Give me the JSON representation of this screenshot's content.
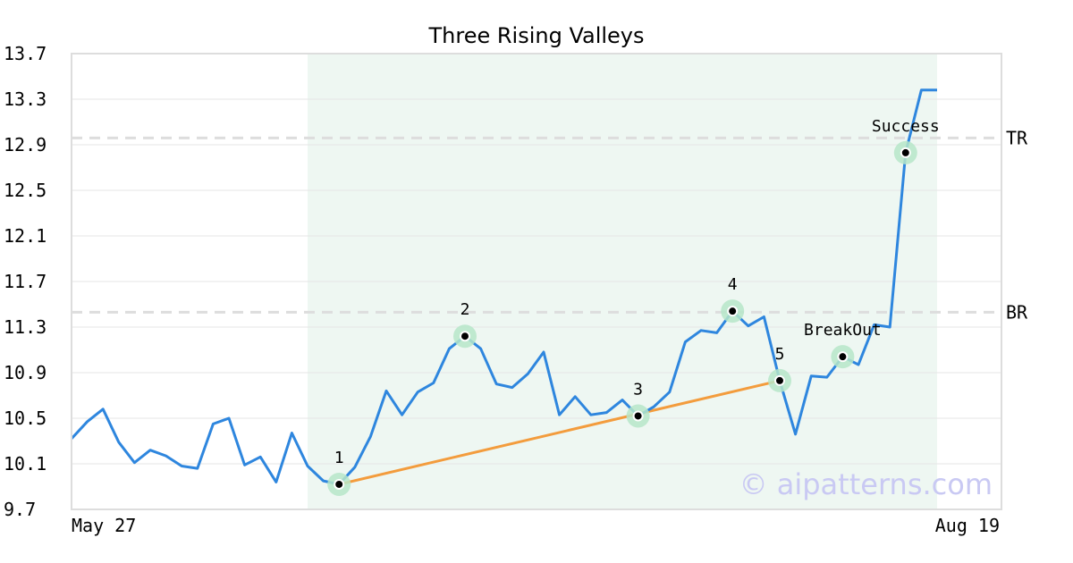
{
  "chart_data": {
    "type": "line",
    "title": "Three Rising Valleys",
    "xlabel": "",
    "ylabel": "",
    "x_tick_labels": [
      "May 27",
      "Aug 19"
    ],
    "y_ticks": [
      9.7,
      10.1,
      10.5,
      10.9,
      11.3,
      11.7,
      12.1,
      12.5,
      12.9,
      13.3,
      13.7
    ],
    "y_tick_labels": [
      "9.7",
      "10.1",
      "10.5",
      "10.9",
      "11.3",
      "11.7",
      "12.1",
      "12.5",
      "12.9",
      "13.3",
      "13.7"
    ],
    "ylim": [
      9.7,
      13.7
    ],
    "grid": "horizontal",
    "colors": {
      "price": "#2e86de",
      "trendline": "#f39c3d",
      "highlight_bg": "#eef7f2",
      "marker_halo": "#b6e6c9",
      "level_line": "#dddddd"
    },
    "series": [
      {
        "values": [
          10.32,
          10.47,
          10.58,
          10.29,
          10.11,
          10.22,
          10.17,
          10.08,
          10.06,
          10.45,
          10.5,
          10.09,
          10.16,
          9.94,
          10.37,
          10.08,
          9.95,
          9.92,
          10.07,
          10.34,
          10.74,
          10.53,
          10.73,
          10.81,
          11.11,
          11.22,
          11.11,
          10.8,
          10.77,
          10.89,
          11.08,
          10.53,
          10.69,
          10.53,
          10.55,
          10.66,
          10.52,
          10.6,
          10.73,
          11.17,
          11.27,
          11.25,
          11.44,
          11.31,
          11.39,
          10.83,
          10.36,
          10.87,
          10.86,
          11.04,
          10.97,
          11.32,
          11.3,
          12.83,
          13.38,
          13.38
        ]
      }
    ],
    "highlight_region": {
      "start_index": 15,
      "end_index": 55
    },
    "trendline": {
      "from_label": "1",
      "to_label": "5"
    },
    "levels": [
      {
        "label": "TR",
        "value": 12.96
      },
      {
        "label": "BR",
        "value": 11.43
      }
    ],
    "annotations": [
      {
        "label": "1",
        "index": 17,
        "value": 9.92
      },
      {
        "label": "2",
        "index": 25,
        "value": 11.22
      },
      {
        "label": "3",
        "index": 36,
        "value": 10.52
      },
      {
        "label": "4",
        "index": 42,
        "value": 11.44
      },
      {
        "label": "5",
        "index": 45,
        "value": 10.83
      },
      {
        "label": "BreakOut",
        "index": 49,
        "value": 11.04
      },
      {
        "label": "Success",
        "index": 53,
        "value": 12.83
      }
    ],
    "watermark": "© aipatterns.com"
  }
}
